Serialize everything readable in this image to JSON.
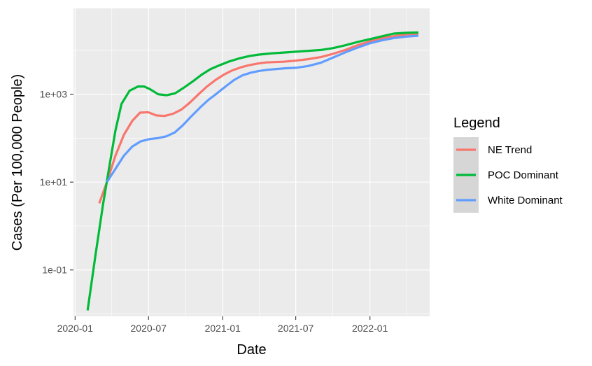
{
  "chart_data": {
    "type": "line",
    "title": "",
    "xlabel": "Date",
    "ylabel": "Cases (Per 100,000 People)",
    "y_scale": "log10",
    "ylim": [
      0.0088,
      90000
    ],
    "xlim": [
      "2019-12-28",
      "2022-05-29"
    ],
    "grid": true,
    "background": "#ebebeb",
    "x_ticks": [
      {
        "date": "2020-01-01",
        "label": "2020-01"
      },
      {
        "date": "2020-07-01",
        "label": "2020-07"
      },
      {
        "date": "2021-01-01",
        "label": "2021-01"
      },
      {
        "date": "2021-07-01",
        "label": "2021-07"
      },
      {
        "date": "2022-01-01",
        "label": "2022-01"
      }
    ],
    "y_ticks": [
      {
        "value": 0.1,
        "label": "1e-01"
      },
      {
        "value": 10,
        "label": "1e+01"
      },
      {
        "value": 1000,
        "label": "1e+03"
      }
    ],
    "legend": {
      "title": "Legend",
      "position": "right"
    },
    "series": [
      {
        "name": "NE Trend",
        "color": "#f8766d",
        "points": [
          [
            "2020-03-01",
            3.3
          ],
          [
            "2020-03-20",
            10
          ],
          [
            "2020-04-10",
            40
          ],
          [
            "2020-05-01",
            120
          ],
          [
            "2020-05-22",
            250
          ],
          [
            "2020-06-10",
            380
          ],
          [
            "2020-06-30",
            390
          ],
          [
            "2020-07-20",
            330
          ],
          [
            "2020-08-10",
            320
          ],
          [
            "2020-08-31",
            360
          ],
          [
            "2020-09-21",
            450
          ],
          [
            "2020-10-12",
            650
          ],
          [
            "2020-11-02",
            1000
          ],
          [
            "2020-11-23",
            1500
          ],
          [
            "2020-12-14",
            2100
          ],
          [
            "2021-01-04",
            2800
          ],
          [
            "2021-01-25",
            3500
          ],
          [
            "2021-02-15",
            4100
          ],
          [
            "2021-03-08",
            4600
          ],
          [
            "2021-03-29",
            5000
          ],
          [
            "2021-04-19",
            5300
          ],
          [
            "2021-05-10",
            5400
          ],
          [
            "2021-06-01",
            5500
          ],
          [
            "2021-07-01",
            5800
          ],
          [
            "2021-08-01",
            6300
          ],
          [
            "2021-09-01",
            7000
          ],
          [
            "2021-10-01",
            8300
          ],
          [
            "2021-11-01",
            10200
          ],
          [
            "2021-12-01",
            13000
          ],
          [
            "2022-01-01",
            16000
          ],
          [
            "2022-02-01",
            19000
          ],
          [
            "2022-03-01",
            21000
          ],
          [
            "2022-04-01",
            23000
          ],
          [
            "2022-05-01",
            24000
          ]
        ]
      },
      {
        "name": "POC Dominant",
        "color": "#00ba38",
        "points": [
          [
            "2020-02-01",
            0.012
          ],
          [
            "2020-02-20",
            0.2
          ],
          [
            "2020-03-10",
            3
          ],
          [
            "2020-03-25",
            20
          ],
          [
            "2020-04-10",
            150
          ],
          [
            "2020-04-25",
            600
          ],
          [
            "2020-05-15",
            1200
          ],
          [
            "2020-06-05",
            1500
          ],
          [
            "2020-06-20",
            1500
          ],
          [
            "2020-07-05",
            1300
          ],
          [
            "2020-07-25",
            1000
          ],
          [
            "2020-08-15",
            950
          ],
          [
            "2020-09-05",
            1050
          ],
          [
            "2020-09-26",
            1400
          ],
          [
            "2020-10-20",
            2000
          ],
          [
            "2020-11-10",
            2800
          ],
          [
            "2020-12-01",
            3700
          ],
          [
            "2020-12-22",
            4500
          ],
          [
            "2021-01-15",
            5500
          ],
          [
            "2021-02-10",
            6500
          ],
          [
            "2021-03-08",
            7400
          ],
          [
            "2021-04-01",
            8000
          ],
          [
            "2021-05-01",
            8500
          ],
          [
            "2021-06-01",
            8900
          ],
          [
            "2021-07-01",
            9300
          ],
          [
            "2021-08-01",
            9700
          ],
          [
            "2021-09-01",
            10200
          ],
          [
            "2021-10-01",
            11200
          ],
          [
            "2021-11-01",
            13000
          ],
          [
            "2021-12-01",
            15500
          ],
          [
            "2022-01-01",
            18000
          ],
          [
            "2022-02-01",
            21000
          ],
          [
            "2022-03-01",
            24000
          ],
          [
            "2022-04-01",
            25000
          ],
          [
            "2022-05-01",
            25500
          ]
        ]
      },
      {
        "name": "White Dominant",
        "color": "#619cff",
        "points": [
          [
            "2020-03-20",
            10
          ],
          [
            "2020-04-10",
            20
          ],
          [
            "2020-05-01",
            40
          ],
          [
            "2020-05-22",
            65
          ],
          [
            "2020-06-12",
            85
          ],
          [
            "2020-07-03",
            95
          ],
          [
            "2020-07-24",
            100
          ],
          [
            "2020-08-14",
            110
          ],
          [
            "2020-09-04",
            135
          ],
          [
            "2020-09-25",
            200
          ],
          [
            "2020-10-16",
            320
          ],
          [
            "2020-11-06",
            500
          ],
          [
            "2020-11-27",
            750
          ],
          [
            "2020-12-18",
            1050
          ],
          [
            "2021-01-08",
            1500
          ],
          [
            "2021-01-29",
            2100
          ],
          [
            "2021-02-19",
            2700
          ],
          [
            "2021-03-12",
            3100
          ],
          [
            "2021-04-02",
            3400
          ],
          [
            "2021-04-23",
            3600
          ],
          [
            "2021-05-14",
            3750
          ],
          [
            "2021-06-04",
            3900
          ],
          [
            "2021-07-01",
            4000
          ],
          [
            "2021-08-01",
            4400
          ],
          [
            "2021-09-01",
            5200
          ],
          [
            "2021-10-01",
            6800
          ],
          [
            "2021-11-01",
            9000
          ],
          [
            "2021-12-01",
            11500
          ],
          [
            "2022-01-01",
            14500
          ],
          [
            "2022-02-01",
            17000
          ],
          [
            "2022-03-01",
            19000
          ],
          [
            "2022-04-01",
            20500
          ],
          [
            "2022-05-01",
            21500
          ]
        ]
      }
    ]
  }
}
